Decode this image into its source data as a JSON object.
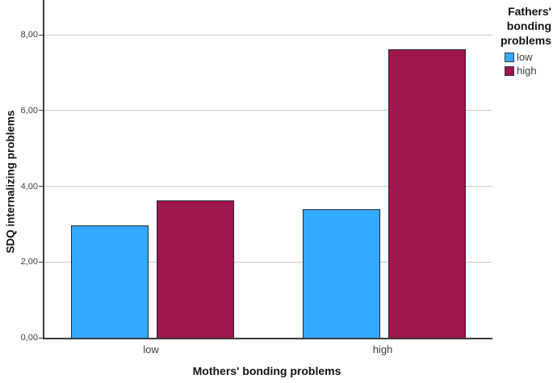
{
  "chart_data": {
    "type": "bar",
    "subtype": "clustered",
    "title": "",
    "categories": [
      "low",
      "high"
    ],
    "series": [
      {
        "name": "low",
        "color": "#33A9FF",
        "values": [
          2.97,
          3.39
        ]
      },
      {
        "name": "high",
        "color": "#A1154E",
        "values": [
          3.63,
          7.62
        ]
      }
    ],
    "xlabel": "Mothers' bonding problems",
    "ylabel": "SDQ internalizing problems",
    "ylim": [
      0,
      8.92
    ],
    "y_ticks": [
      0,
      2,
      4,
      6,
      8
    ],
    "y_tick_labels": [
      "0,00",
      "2,00",
      "4,00",
      "6,00",
      "8,00"
    ],
    "grid": "horizontal",
    "gridline_color": "#c9c9c9",
    "axis_color": "#3c3c3c",
    "bar_border_color": "#26262e",
    "legend_title": "Fathers' bonding problems",
    "legend_position": "top-right",
    "legend_entries": [
      "low",
      "high"
    ]
  }
}
